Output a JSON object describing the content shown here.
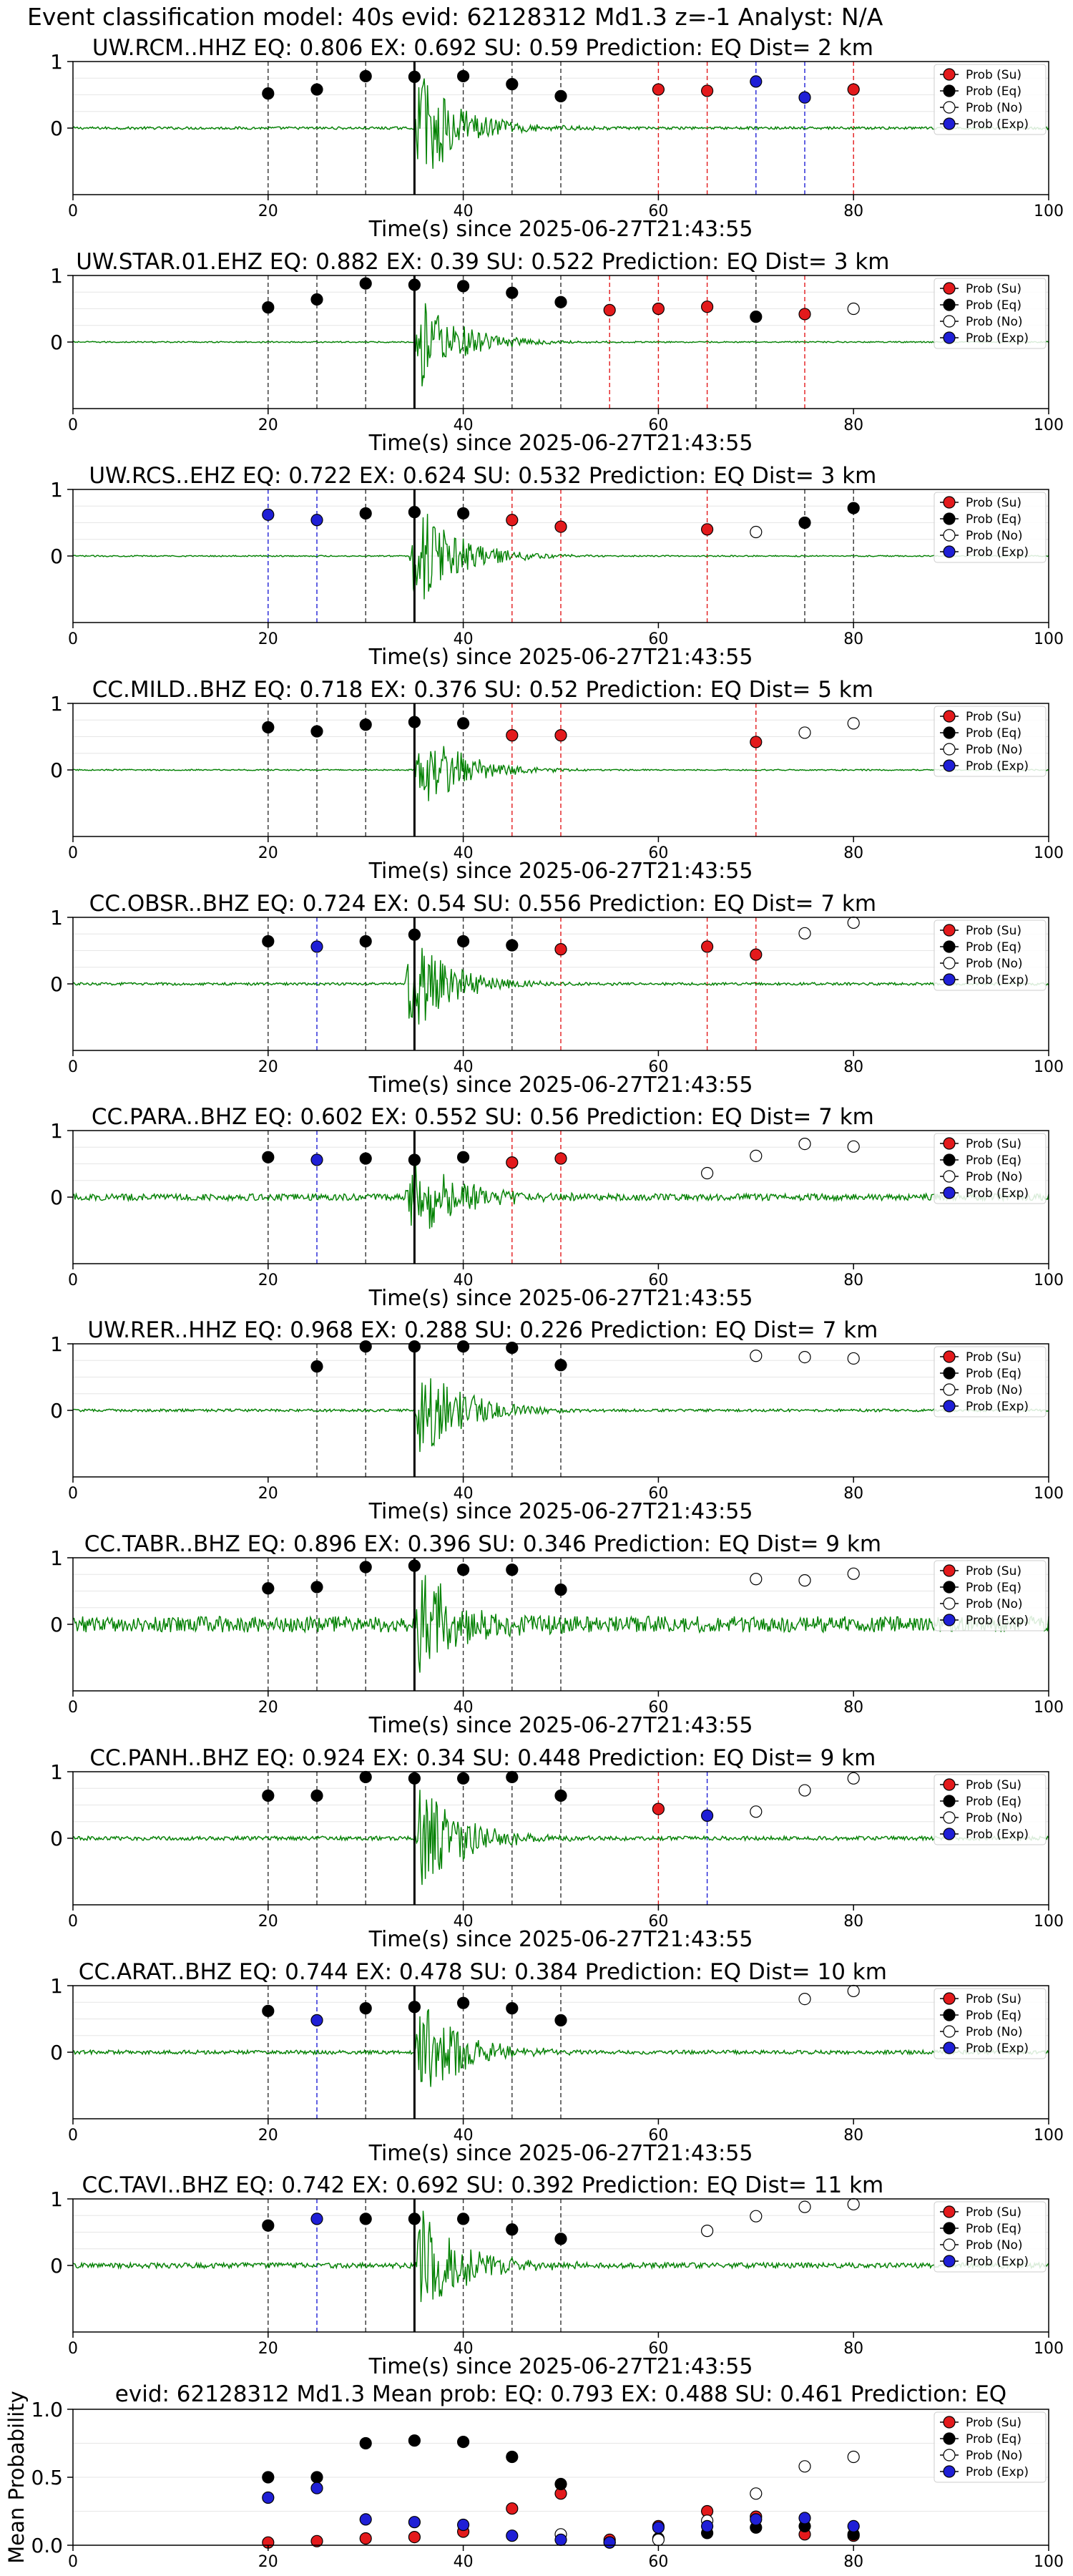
{
  "figure_title": "Event classification model: 40s evid: 62128312 Md1.3 z=-1 Analyst: N/A",
  "x_axis_label": "Time(s) since 2025-06-27T21:43:55",
  "legend_labels": [
    "Prob (Su)",
    "Prob (Eq)",
    "Prob (No)",
    "Prob (Exp)"
  ],
  "colors": {
    "su": "#e31a1c",
    "eq": "#000000",
    "no": "#ffffff",
    "exp": "#1f1fd6",
    "waveform": "#008000",
    "pick": "#000000"
  },
  "chart_data": [
    {
      "type": "scatter",
      "title": "UW.RCM..HHZ   EQ: 0.806  EX: 0.692  SU: 0.59   Prediction: EQ    Dist= 2 km",
      "xlim": [
        0,
        100
      ],
      "ylim": [
        -1,
        1
      ],
      "yticks": [
        0,
        1
      ],
      "xticks": [
        0,
        20,
        40,
        60,
        80,
        100
      ],
      "pick_time": 35,
      "waveform": {
        "onset": 35,
        "amp": 1.0,
        "noise": 0.02
      },
      "points": [
        [
          20,
          0.52,
          "eq"
        ],
        [
          25,
          0.58,
          "eq"
        ],
        [
          30,
          0.78,
          "eq"
        ],
        [
          35,
          0.77,
          "eq"
        ],
        [
          40,
          0.78,
          "eq"
        ],
        [
          45,
          0.66,
          "eq"
        ],
        [
          50,
          0.48,
          "eq"
        ],
        [
          60,
          0.58,
          "su"
        ],
        [
          65,
          0.56,
          "su"
        ],
        [
          70,
          0.7,
          "exp"
        ],
        [
          75,
          0.46,
          "exp"
        ],
        [
          80,
          0.58,
          "su"
        ]
      ]
    },
    {
      "type": "scatter",
      "title": "UW.STAR.01.EHZ   EQ: 0.882  EX: 0.39  SU: 0.522   Prediction: EQ    Dist= 3 km",
      "xlim": [
        0,
        100
      ],
      "ylim": [
        -1,
        1
      ],
      "yticks": [
        0,
        1
      ],
      "xticks": [
        0,
        20,
        40,
        60,
        80,
        100
      ],
      "pick_time": 35,
      "waveform": {
        "onset": 35,
        "amp": 0.8,
        "noise": 0.01
      },
      "points": [
        [
          20,
          0.52,
          "eq"
        ],
        [
          25,
          0.64,
          "eq"
        ],
        [
          30,
          0.88,
          "eq"
        ],
        [
          35,
          0.86,
          "eq"
        ],
        [
          40,
          0.84,
          "eq"
        ],
        [
          45,
          0.74,
          "eq"
        ],
        [
          50,
          0.6,
          "eq"
        ],
        [
          55,
          0.48,
          "su"
        ],
        [
          60,
          0.5,
          "su"
        ],
        [
          65,
          0.53,
          "su"
        ],
        [
          70,
          0.38,
          "eq"
        ],
        [
          75,
          0.42,
          "su"
        ],
        [
          80,
          0.5,
          "no"
        ]
      ]
    },
    {
      "type": "scatter",
      "title": "UW.RCS..EHZ   EQ: 0.722  EX: 0.624  SU: 0.532   Prediction: EQ    Dist= 3 km",
      "xlim": [
        0,
        100
      ],
      "ylim": [
        -1,
        1
      ],
      "yticks": [
        0,
        1
      ],
      "xticks": [
        0,
        20,
        40,
        60,
        80,
        100
      ],
      "pick_time": 35,
      "waveform": {
        "onset": 34.5,
        "amp": 1.0,
        "noise": 0.01
      },
      "points": [
        [
          20,
          0.62,
          "exp"
        ],
        [
          25,
          0.54,
          "exp"
        ],
        [
          30,
          0.64,
          "eq"
        ],
        [
          35,
          0.66,
          "eq"
        ],
        [
          40,
          0.64,
          "eq"
        ],
        [
          45,
          0.54,
          "su"
        ],
        [
          50,
          0.44,
          "su"
        ],
        [
          65,
          0.4,
          "su"
        ],
        [
          70,
          0.36,
          "no"
        ],
        [
          75,
          0.5,
          "eq"
        ],
        [
          80,
          0.72,
          "eq"
        ]
      ]
    },
    {
      "type": "scatter",
      "title": "CC.MILD..BHZ   EQ: 0.718  EX: 0.376  SU: 0.52   Prediction: EQ    Dist= 5 km",
      "xlim": [
        0,
        100
      ],
      "ylim": [
        -1,
        1
      ],
      "yticks": [
        0,
        1
      ],
      "xticks": [
        0,
        20,
        40,
        60,
        80,
        100
      ],
      "pick_time": 35,
      "waveform": {
        "onset": 35,
        "amp": 0.8,
        "noise": 0.01
      },
      "points": [
        [
          20,
          0.64,
          "eq"
        ],
        [
          25,
          0.58,
          "eq"
        ],
        [
          30,
          0.68,
          "eq"
        ],
        [
          35,
          0.72,
          "eq"
        ],
        [
          40,
          0.7,
          "eq"
        ],
        [
          45,
          0.52,
          "su"
        ],
        [
          50,
          0.52,
          "su"
        ],
        [
          70,
          0.42,
          "su"
        ],
        [
          75,
          0.56,
          "no"
        ],
        [
          80,
          0.7,
          "no"
        ]
      ]
    },
    {
      "type": "scatter",
      "title": "CC.OBSR..BHZ   EQ: 0.724  EX: 0.54  SU: 0.556   Prediction: EQ    Dist= 7 km",
      "xlim": [
        0,
        100
      ],
      "ylim": [
        -1,
        1
      ],
      "yticks": [
        0,
        1
      ],
      "xticks": [
        0,
        20,
        40,
        60,
        80,
        100
      ],
      "pick_time": 35,
      "waveform": {
        "onset": 34,
        "amp": 0.9,
        "noise": 0.02
      },
      "points": [
        [
          20,
          0.64,
          "eq"
        ],
        [
          25,
          0.56,
          "exp"
        ],
        [
          30,
          0.64,
          "eq"
        ],
        [
          35,
          0.74,
          "eq"
        ],
        [
          40,
          0.64,
          "eq"
        ],
        [
          45,
          0.58,
          "eq"
        ],
        [
          50,
          0.52,
          "su"
        ],
        [
          65,
          0.56,
          "su"
        ],
        [
          70,
          0.44,
          "su"
        ],
        [
          75,
          0.76,
          "no"
        ],
        [
          80,
          0.92,
          "no"
        ]
      ]
    },
    {
      "type": "scatter",
      "title": "CC.PARA..BHZ   EQ: 0.602  EX: 0.552  SU: 0.56   Prediction: EQ    Dist= 7 km",
      "xlim": [
        0,
        100
      ],
      "ylim": [
        -1,
        1
      ],
      "yticks": [
        0,
        1
      ],
      "xticks": [
        0,
        20,
        40,
        60,
        80,
        100
      ],
      "pick_time": 35,
      "waveform": {
        "onset": 34,
        "amp": 0.9,
        "noise": 0.05
      },
      "points": [
        [
          20,
          0.6,
          "eq"
        ],
        [
          25,
          0.56,
          "exp"
        ],
        [
          30,
          0.58,
          "eq"
        ],
        [
          35,
          0.56,
          "eq"
        ],
        [
          40,
          0.6,
          "eq"
        ],
        [
          45,
          0.52,
          "su"
        ],
        [
          50,
          0.58,
          "su"
        ],
        [
          65,
          0.36,
          "no"
        ],
        [
          70,
          0.62,
          "no"
        ],
        [
          75,
          0.8,
          "no"
        ],
        [
          80,
          0.76,
          "no"
        ]
      ]
    },
    {
      "type": "scatter",
      "title": "UW.RER..HHZ   EQ: 0.968  EX: 0.288  SU: 0.226   Prediction: EQ    Dist= 7 km",
      "xlim": [
        0,
        100
      ],
      "ylim": [
        -1,
        1
      ],
      "yticks": [
        0,
        1
      ],
      "xticks": [
        0,
        20,
        40,
        60,
        80,
        100
      ],
      "pick_time": 35,
      "waveform": {
        "onset": 35,
        "amp": 0.9,
        "noise": 0.02
      },
      "points": [
        [
          25,
          0.66,
          "eq"
        ],
        [
          30,
          0.96,
          "eq"
        ],
        [
          35,
          0.96,
          "eq"
        ],
        [
          40,
          0.96,
          "eq"
        ],
        [
          45,
          0.94,
          "eq"
        ],
        [
          50,
          0.68,
          "eq"
        ],
        [
          70,
          0.82,
          "no"
        ],
        [
          75,
          0.8,
          "no"
        ],
        [
          80,
          0.78,
          "no"
        ]
      ]
    },
    {
      "type": "scatter",
      "title": "CC.TABR..BHZ   EQ: 0.896  EX: 0.396  SU: 0.346   Prediction: EQ    Dist= 9 km",
      "xlim": [
        0,
        100
      ],
      "ylim": [
        -1,
        1
      ],
      "yticks": [
        0,
        1
      ],
      "xticks": [
        0,
        20,
        40,
        60,
        80,
        100
      ],
      "pick_time": 35,
      "waveform": {
        "onset": 35,
        "amp": 1.0,
        "noise": 0.12
      },
      "points": [
        [
          20,
          0.54,
          "eq"
        ],
        [
          25,
          0.56,
          "eq"
        ],
        [
          30,
          0.86,
          "eq"
        ],
        [
          35,
          0.88,
          "eq"
        ],
        [
          40,
          0.82,
          "eq"
        ],
        [
          45,
          0.82,
          "eq"
        ],
        [
          50,
          0.52,
          "eq"
        ],
        [
          70,
          0.68,
          "no"
        ],
        [
          75,
          0.66,
          "no"
        ],
        [
          80,
          0.76,
          "no"
        ]
      ]
    },
    {
      "type": "scatter",
      "title": "CC.PANH..BHZ   EQ: 0.924  EX: 0.34  SU: 0.448   Prediction: EQ    Dist= 9 km",
      "xlim": [
        0,
        100
      ],
      "ylim": [
        -1,
        1
      ],
      "yticks": [
        0,
        1
      ],
      "xticks": [
        0,
        20,
        40,
        60,
        80,
        100
      ],
      "pick_time": 35,
      "waveform": {
        "onset": 35,
        "amp": 1.0,
        "noise": 0.03
      },
      "points": [
        [
          20,
          0.64,
          "eq"
        ],
        [
          25,
          0.64,
          "eq"
        ],
        [
          30,
          0.92,
          "eq"
        ],
        [
          35,
          0.9,
          "eq"
        ],
        [
          40,
          0.9,
          "eq"
        ],
        [
          45,
          0.92,
          "eq"
        ],
        [
          50,
          0.64,
          "eq"
        ],
        [
          60,
          0.44,
          "su"
        ],
        [
          65,
          0.34,
          "exp"
        ],
        [
          70,
          0.4,
          "no"
        ],
        [
          75,
          0.72,
          "no"
        ],
        [
          80,
          0.9,
          "no"
        ]
      ]
    },
    {
      "type": "scatter",
      "title": "CC.ARAT..BHZ   EQ: 0.744  EX: 0.478  SU: 0.384   Prediction: EQ    Dist= 10 km",
      "xlim": [
        0,
        100
      ],
      "ylim": [
        -1,
        1
      ],
      "yticks": [
        0,
        1
      ],
      "xticks": [
        0,
        20,
        40,
        60,
        80,
        100
      ],
      "pick_time": 35,
      "waveform": {
        "onset": 35,
        "amp": 0.9,
        "noise": 0.03
      },
      "points": [
        [
          20,
          0.62,
          "eq"
        ],
        [
          25,
          0.48,
          "exp"
        ],
        [
          30,
          0.66,
          "eq"
        ],
        [
          35,
          0.68,
          "eq"
        ],
        [
          40,
          0.74,
          "eq"
        ],
        [
          45,
          0.66,
          "eq"
        ],
        [
          50,
          0.48,
          "eq"
        ],
        [
          75,
          0.8,
          "no"
        ],
        [
          80,
          0.92,
          "no"
        ]
      ]
    },
    {
      "type": "scatter",
      "title": "CC.TAVI..BHZ   EQ: 0.742  EX: 0.692  SU: 0.392   Prediction: EQ    Dist= 11 km",
      "xlim": [
        0,
        100
      ],
      "ylim": [
        -1,
        1
      ],
      "yticks": [
        0,
        1
      ],
      "xticks": [
        0,
        20,
        40,
        60,
        80,
        100
      ],
      "pick_time": 35,
      "waveform": {
        "onset": 35,
        "amp": 1.0,
        "noise": 0.04
      },
      "points": [
        [
          20,
          0.6,
          "eq"
        ],
        [
          25,
          0.7,
          "exp"
        ],
        [
          30,
          0.7,
          "eq"
        ],
        [
          35,
          0.7,
          "eq"
        ],
        [
          40,
          0.7,
          "eq"
        ],
        [
          45,
          0.54,
          "eq"
        ],
        [
          50,
          0.4,
          "eq"
        ],
        [
          65,
          0.52,
          "no"
        ],
        [
          70,
          0.74,
          "no"
        ],
        [
          75,
          0.88,
          "no"
        ],
        [
          80,
          0.92,
          "no"
        ]
      ]
    },
    {
      "type": "scatter",
      "title": "evid: 62128312  Md1.3   Mean prob:   EQ: 0.793  EX: 0.488  SU: 0.461   Prediction: EQ",
      "ylabel": "Mean Probability",
      "xlim": [
        0,
        100
      ],
      "ylim": [
        0,
        1
      ],
      "yticks": [
        0,
        0.5,
        1
      ],
      "ytick_labels": [
        "0.0",
        "0.5",
        "1.0"
      ],
      "xticks": [
        0,
        20,
        40,
        60,
        80,
        100
      ],
      "series": [
        {
          "name": "Prob (Su)",
          "key": "su",
          "x": [
            20,
            25,
            30,
            35,
            40,
            45,
            50,
            55,
            60,
            65,
            70,
            75,
            80
          ],
          "values": [
            0.02,
            0.03,
            0.05,
            0.06,
            0.1,
            0.27,
            0.38,
            0.04,
            0.14,
            0.25,
            0.21,
            0.08,
            0.07
          ]
        },
        {
          "name": "Prob (Eq)",
          "key": "eq",
          "x": [
            20,
            25,
            30,
            35,
            40,
            45,
            50,
            55,
            60,
            65,
            70,
            75,
            80
          ],
          "values": [
            0.5,
            0.5,
            0.75,
            0.77,
            0.76,
            0.65,
            0.45,
            0.02,
            0.05,
            0.09,
            0.13,
            0.14,
            0.08
          ]
        },
        {
          "name": "Prob (No)",
          "key": "no",
          "x": [
            50,
            60,
            65,
            70,
            75,
            80
          ],
          "values": [
            0.08,
            0.04,
            0.18,
            0.38,
            0.58,
            0.65
          ]
        },
        {
          "name": "Prob (Exp)",
          "key": "exp",
          "x": [
            20,
            25,
            30,
            35,
            40,
            45,
            50,
            55,
            60,
            65,
            70,
            75,
            80
          ],
          "values": [
            0.35,
            0.42,
            0.19,
            0.17,
            0.15,
            0.07,
            0.04,
            0.02,
            0.13,
            0.14,
            0.19,
            0.2,
            0.14
          ]
        }
      ]
    }
  ]
}
